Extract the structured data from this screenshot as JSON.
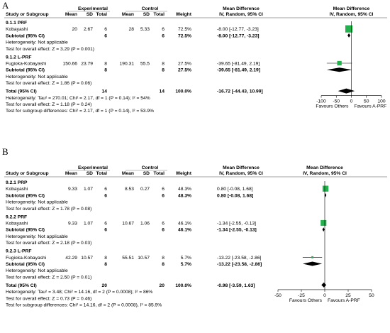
{
  "chart_data": [
    {
      "panel": "A",
      "type": "forest",
      "headers": {
        "col1": "Study or Subgroup",
        "group1": "Experimental",
        "group2": "Control",
        "mean": "Mean",
        "sd": "SD",
        "total": "Total",
        "weight": "Weight",
        "md": "Mean Difference",
        "md_sub": "IV, Random, 95% CI",
        "plot": "Mean Difference",
        "plot_sub": "IV, Random, 95% CI"
      },
      "subgroups": [
        {
          "title": "9.1.1 PRF",
          "studies": [
            {
              "name": "Kobayashi",
              "e_mean": "20",
              "e_sd": "2.67",
              "e_n": "6",
              "c_mean": "28",
              "c_sd": "5.33",
              "c_n": "6",
              "weight": "72.5%",
              "ci_text": "-8.00 [-12.77, -3.23]",
              "md": -8.0,
              "lo": -12.77,
              "hi": -3.23
            }
          ],
          "subtotal": {
            "label": "Subtotal (95% CI)",
            "e_n": "6",
            "c_n": "6",
            "weight": "72.5%",
            "ci_text": "-8.00 [-12.77, -3.23]",
            "md": -8.0,
            "lo": -12.77,
            "hi": -3.23
          },
          "heterogeneity": "Heterogeneity: Not applicable",
          "overall": "Test for overall effect: Z = 3.29 (P = 0.001)"
        },
        {
          "title": "9.1.2 L-PRF",
          "studies": [
            {
              "name": "Fugioka-Kobayashi",
              "e_mean": "150.66",
              "e_sd": "23.79",
              "e_n": "8",
              "c_mean": "190.31",
              "c_sd": "55.5",
              "c_n": "8",
              "weight": "27.5%",
              "ci_text": "-39.65 [-81.49, 2.19]",
              "md": -39.65,
              "lo": -81.49,
              "hi": 2.19
            }
          ],
          "subtotal": {
            "label": "Subtotal (95% CI)",
            "e_n": "8",
            "c_n": "8",
            "weight": "27.5%",
            "ci_text": "-39.65 [-81.49, 2.19]",
            "md": -39.65,
            "lo": -81.49,
            "hi": 2.19
          },
          "heterogeneity": "Heterogeneity: Not applicable",
          "overall": "Test for overall effect: Z = 1.86 (P = 0.06)"
        }
      ],
      "total": {
        "label": "Total (95% CI)",
        "e_n": "14",
        "c_n": "14",
        "weight": "100.0%",
        "ci_text": "-16.72 [-44.43, 10.99]",
        "md": -16.72,
        "lo": -44.43,
        "hi": 10.99
      },
      "footer": [
        "Heterogeneity: Tau² = 270.01; Chi² = 2.17, df = 1 (P = 0.14); I² = 54%",
        "Test for overall effect: Z = 1.18 (P = 0.24)",
        "Test for subgroup differences: Chi² = 2.17, df = 1 (P = 0.14), I² = 53.9%"
      ],
      "axis": {
        "min": -100,
        "max": 100,
        "ticks": [
          -100,
          -50,
          0,
          50,
          100
        ],
        "tick_labels": [
          "-100",
          "-50",
          "0",
          "50",
          "100"
        ],
        "left_label": "Favours Others",
        "right_label": "Favours A-PRF"
      }
    },
    {
      "panel": "B",
      "type": "forest",
      "headers": {
        "col1": "Study or Subgroup",
        "group1": "Experimental",
        "group2": "Control",
        "mean": "Mean",
        "sd": "SD",
        "total": "Total",
        "weight": "Weight",
        "md": "Mean Difference",
        "md_sub": "IV, Random, 95% CI",
        "plot": "Mean Difference",
        "plot_sub": "IV, Random, 95% CI"
      },
      "subgroups": [
        {
          "title": "9.2.1 PRP",
          "studies": [
            {
              "name": "Kobayashi",
              "e_mean": "9.33",
              "e_sd": "1.07",
              "e_n": "6",
              "c_mean": "8.53",
              "c_sd": "0.27",
              "c_n": "6",
              "weight": "48.3%",
              "ci_text": "0.80 [-0.08, 1.68]",
              "md": 0.8,
              "lo": -0.08,
              "hi": 1.68
            }
          ],
          "subtotal": {
            "label": "Subtotal (95% CI)",
            "e_n": "6",
            "c_n": "6",
            "weight": "48.3%",
            "ci_text": "0.80 [-0.08, 1.68]",
            "md": 0.8,
            "lo": -0.08,
            "hi": 1.68
          },
          "heterogeneity": "Heterogeneity: Not applicable",
          "overall": "Test for overall effect: Z = 1.78 (P = 0.08)"
        },
        {
          "title": "9.2.2 PRF",
          "studies": [
            {
              "name": "Kobayashi",
              "e_mean": "9.33",
              "e_sd": "1.07",
              "e_n": "6",
              "c_mean": "10.67",
              "c_sd": "1.06",
              "c_n": "6",
              "weight": "46.1%",
              "ci_text": "-1.34 [-2.55, -0.13]",
              "md": -1.34,
              "lo": -2.55,
              "hi": -0.13
            }
          ],
          "subtotal": {
            "label": "Subtotal (95% CI)",
            "e_n": "6",
            "c_n": "6",
            "weight": "46.1%",
            "ci_text": "-1.34 [-2.55, -0.13]",
            "md": -1.34,
            "lo": -2.55,
            "hi": -0.13
          },
          "heterogeneity": "Heterogeneity: Not applicable",
          "overall": "Test for overall effect: Z = 2.18 (P = 0.03)"
        },
        {
          "title": "9.2.3 L-PRF",
          "studies": [
            {
              "name": "Fugioka-Kobayashi",
              "e_mean": "42.29",
              "e_sd": "10.57",
              "e_n": "8",
              "c_mean": "55.51",
              "c_sd": "10.57",
              "c_n": "8",
              "weight": "5.7%",
              "ci_text": "-13.22 [-23.58, -2.86]",
              "md": -13.22,
              "lo": -23.58,
              "hi": -2.86
            }
          ],
          "subtotal": {
            "label": "Subtotal (95% CI)",
            "e_n": "8",
            "c_n": "8",
            "weight": "5.7%",
            "ci_text": "-13.22 [-23.58, -2.86]",
            "md": -13.22,
            "lo": -23.58,
            "hi": -2.86
          },
          "heterogeneity": "Heterogeneity: Not applicable",
          "overall": "Test for overall effect: Z = 2.50 (P = 0.01)"
        }
      ],
      "total": {
        "label": "Total (95% CI)",
        "e_n": "20",
        "c_n": "20",
        "weight": "100.0%",
        "ci_text": "-0.98 [-3.59, 1.63]",
        "md": -0.98,
        "lo": -3.59,
        "hi": 1.63
      },
      "footer": [
        "Heterogeneity: Tau² = 3.48; Chi² = 14.16, df = 2 (P = 0.0008); I² = 86%",
        "Test for overall effect: Z = 0.73 (P = 0.46)",
        "Test for subgroup differences: Chi² = 14.16, df = 2 (P = 0.0008), I² = 85.9%"
      ],
      "axis": {
        "min": -50,
        "max": 50,
        "ticks": [
          -50,
          -25,
          0,
          25,
          50
        ],
        "tick_labels": [
          "-50",
          "-25",
          "0",
          "25",
          "50"
        ],
        "left_label": "Favours Others",
        "right_label": "Favours A-PRF"
      }
    }
  ],
  "panels": {
    "a_letter": "A",
    "b_letter": "B"
  },
  "colors": {
    "study_square": "#22b14c",
    "square_border": "#1a8a3a",
    "line": "#000000",
    "header_rule": "#808080"
  }
}
